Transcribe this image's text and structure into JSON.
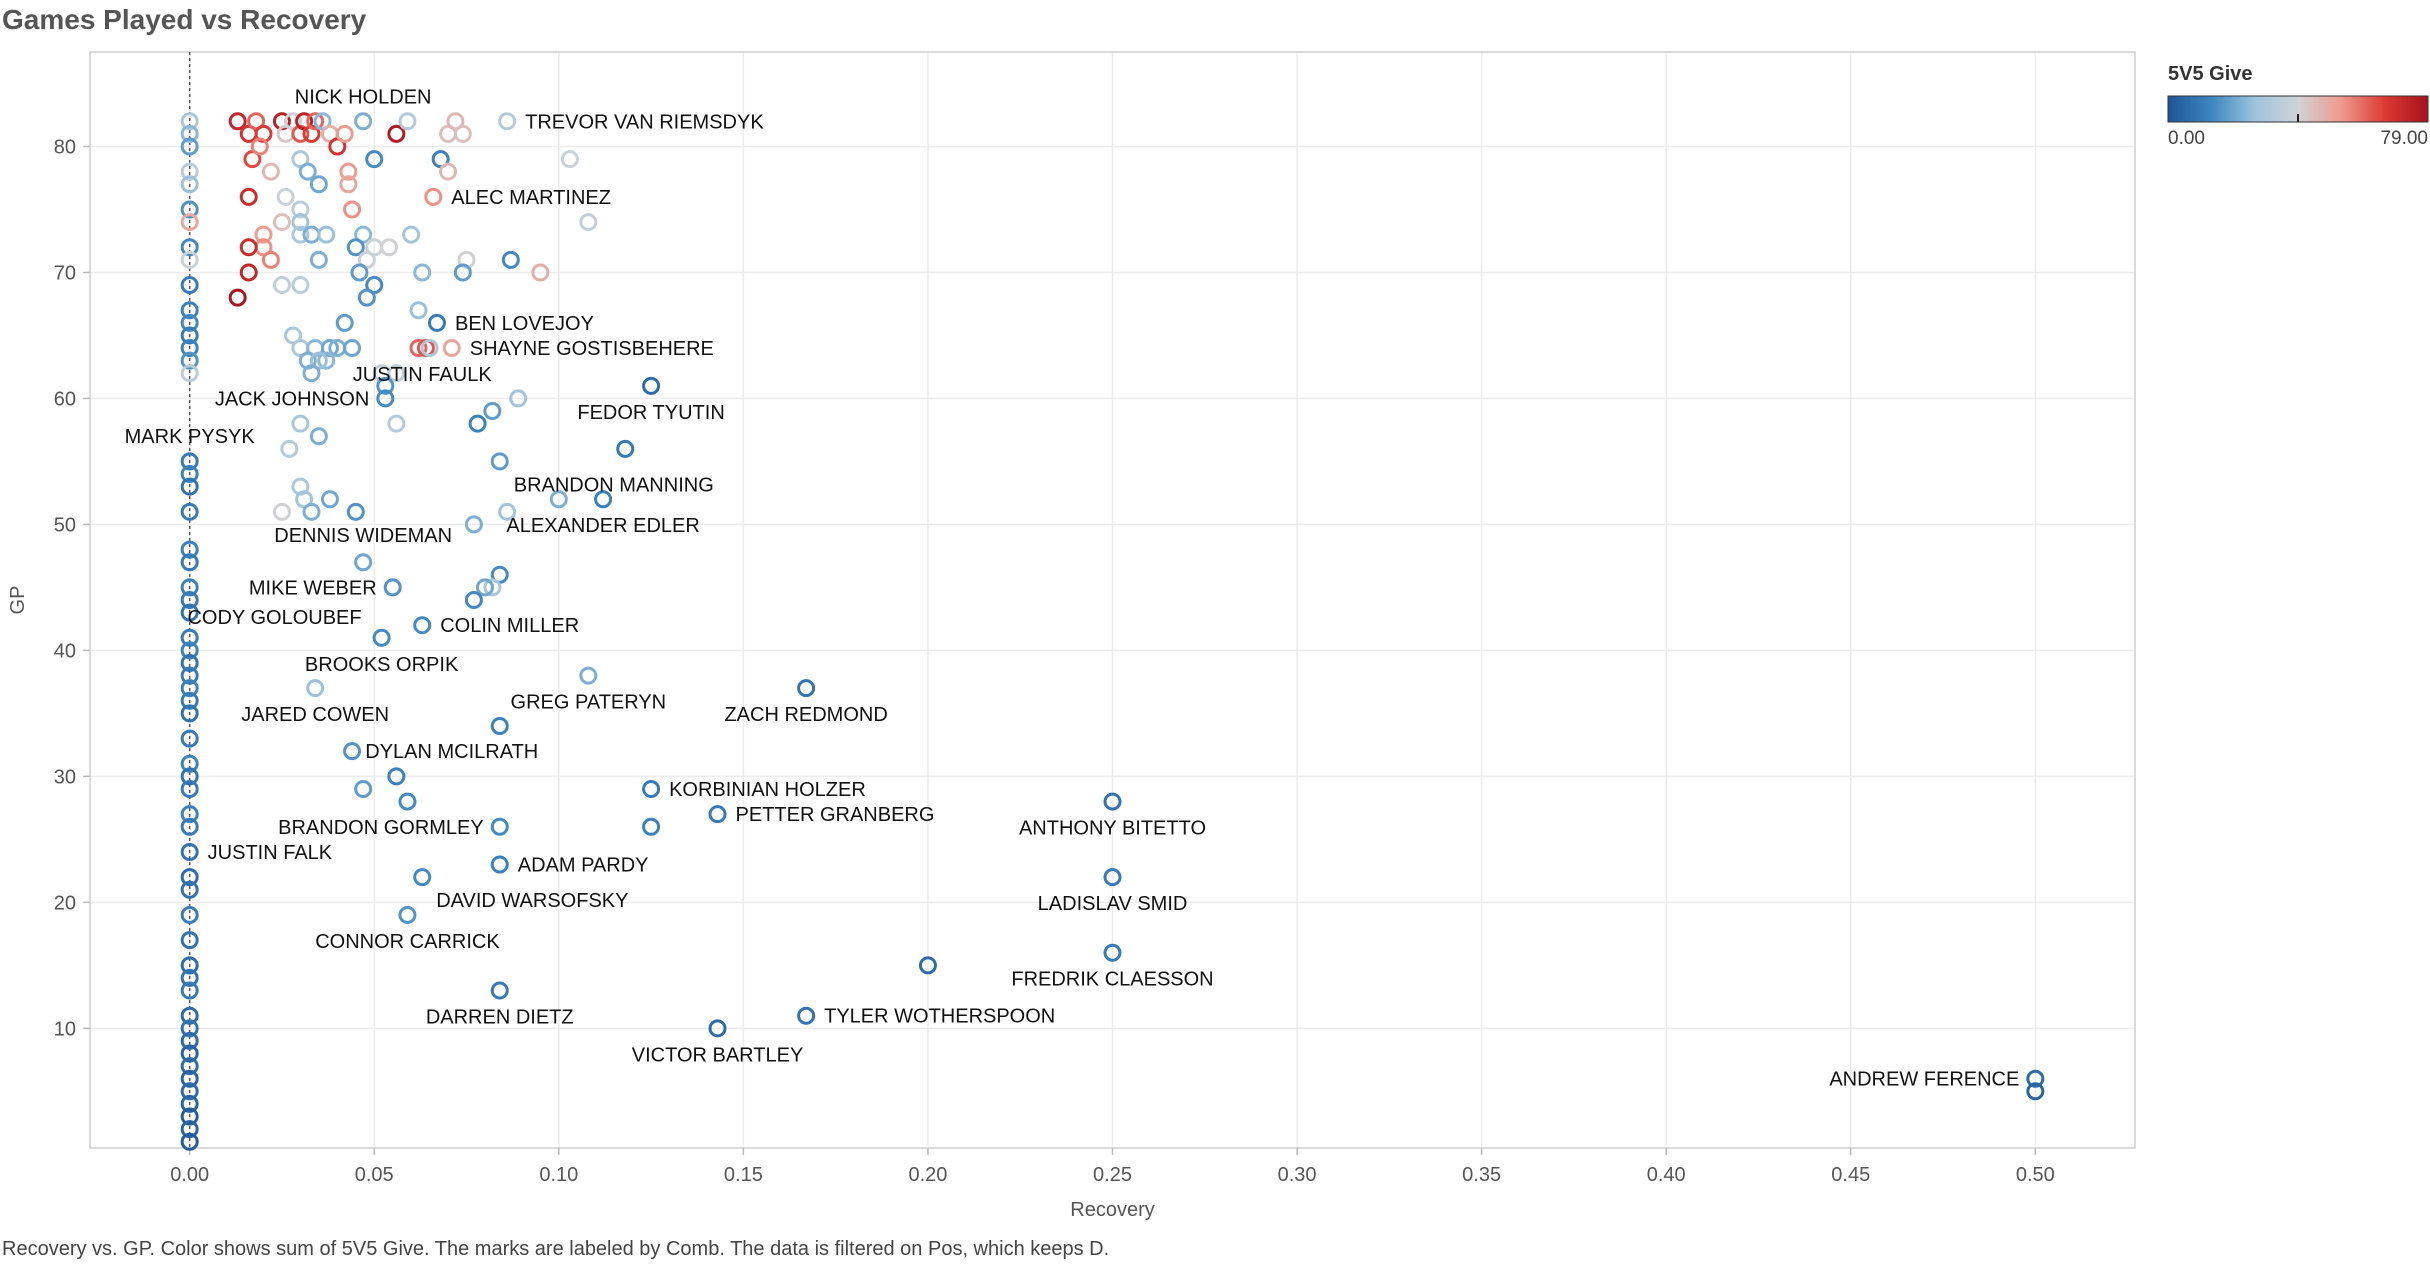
{
  "page": {
    "title": "Games Played vs Recovery",
    "caption": "Recovery vs. GP.  Color shows sum of 5V5 Give.  The marks are labeled by Comb. The data is filtered on Pos, which keeps D."
  },
  "chart_data": {
    "type": "scatter",
    "xlabel": "Recovery",
    "ylabel": "GP",
    "xlim": [
      -0.027,
      0.527
    ],
    "ylim": [
      0.5,
      87.5
    ],
    "xticks": [
      0.0,
      0.05,
      0.1,
      0.15,
      0.2,
      0.25,
      0.3,
      0.35,
      0.4,
      0.45,
      0.5
    ],
    "xtick_labels": [
      "0.00",
      "0.05",
      "0.10",
      "0.15",
      "0.20",
      "0.25",
      "0.30",
      "0.35",
      "0.40",
      "0.45",
      "0.50"
    ],
    "yticks": [
      10,
      20,
      30,
      40,
      50,
      60,
      70,
      80
    ],
    "ytick_labels": [
      "10",
      "20",
      "30",
      "40",
      "50",
      "60",
      "70",
      "80"
    ],
    "grid": true,
    "reference_line_x": 0.0,
    "legend": {
      "title": "5V5 Give",
      "min": 0,
      "max": 79,
      "min_label": "0.00",
      "max_label": "79.00",
      "placement": "top-right",
      "colors": [
        "#1f5597",
        "#3d86c0",
        "#9dc3dd",
        "#d0d3d6",
        "#ee9a8e",
        "#dc3a33",
        "#a5121e"
      ]
    },
    "points": [
      {
        "x": 0.0,
        "y": 82,
        "c": 30
      },
      {
        "x": 0.0,
        "y": 81,
        "c": 24
      },
      {
        "x": 0.0,
        "y": 80,
        "c": 18
      },
      {
        "x": 0.0,
        "y": 78,
        "c": 34
      },
      {
        "x": 0.0,
        "y": 77,
        "c": 26
      },
      {
        "x": 0.0,
        "y": 75,
        "c": 16
      },
      {
        "x": 0.0,
        "y": 74,
        "c": 50
      },
      {
        "x": 0.0,
        "y": 72,
        "c": 14
      },
      {
        "x": 0.0,
        "y": 71,
        "c": 38
      },
      {
        "x": 0.0,
        "y": 69,
        "c": 10
      },
      {
        "x": 0.0,
        "y": 67,
        "c": 12
      },
      {
        "x": 0.0,
        "y": 66,
        "c": 14
      },
      {
        "x": 0.0,
        "y": 65,
        "c": 10
      },
      {
        "x": 0.0,
        "y": 64,
        "c": 12
      },
      {
        "x": 0.0,
        "y": 63,
        "c": 16
      },
      {
        "x": 0.0,
        "y": 62,
        "c": 34
      },
      {
        "x": 0.0,
        "y": 55,
        "c": 10
      },
      {
        "x": 0.0,
        "y": 54,
        "c": 12
      },
      {
        "x": 0.0,
        "y": 53,
        "c": 8
      },
      {
        "x": 0.0,
        "y": 51,
        "c": 10
      },
      {
        "x": 0.0,
        "y": 48,
        "c": 12
      },
      {
        "x": 0.0,
        "y": 47,
        "c": 10
      },
      {
        "x": 0.0,
        "y": 45,
        "c": 12
      },
      {
        "x": 0.0,
        "y": 44,
        "c": 10
      },
      {
        "x": 0.0,
        "y": 43,
        "c": 8
      },
      {
        "x": 0.0,
        "y": 41,
        "c": 10
      },
      {
        "x": 0.0,
        "y": 40,
        "c": 12
      },
      {
        "x": 0.0,
        "y": 39,
        "c": 8
      },
      {
        "x": 0.0,
        "y": 38,
        "c": 10
      },
      {
        "x": 0.0,
        "y": 37,
        "c": 12
      },
      {
        "x": 0.0,
        "y": 36,
        "c": 10
      },
      {
        "x": 0.0,
        "y": 35,
        "c": 8
      },
      {
        "x": 0.0,
        "y": 33,
        "c": 10
      },
      {
        "x": 0.0,
        "y": 31,
        "c": 12
      },
      {
        "x": 0.0,
        "y": 30,
        "c": 8
      },
      {
        "x": 0.0,
        "y": 29,
        "c": 10
      },
      {
        "x": 0.0,
        "y": 27,
        "c": 12
      },
      {
        "x": 0.0,
        "y": 26,
        "c": 10
      },
      {
        "x": 0.0,
        "y": 24,
        "c": 8
      },
      {
        "x": 0.0,
        "y": 22,
        "c": 6
      },
      {
        "x": 0.0,
        "y": 21,
        "c": 8
      },
      {
        "x": 0.0,
        "y": 19,
        "c": 10
      },
      {
        "x": 0.0,
        "y": 17,
        "c": 8
      },
      {
        "x": 0.0,
        "y": 15,
        "c": 6
      },
      {
        "x": 0.0,
        "y": 14,
        "c": 8
      },
      {
        "x": 0.0,
        "y": 13,
        "c": 10
      },
      {
        "x": 0.0,
        "y": 11,
        "c": 6
      },
      {
        "x": 0.0,
        "y": 10,
        "c": 8
      },
      {
        "x": 0.0,
        "y": 9,
        "c": 6
      },
      {
        "x": 0.0,
        "y": 8,
        "c": 4
      },
      {
        "x": 0.0,
        "y": 7,
        "c": 6
      },
      {
        "x": 0.0,
        "y": 6,
        "c": 4
      },
      {
        "x": 0.0,
        "y": 5,
        "c": 6
      },
      {
        "x": 0.0,
        "y": 4,
        "c": 4
      },
      {
        "x": 0.0,
        "y": 3,
        "c": 2
      },
      {
        "x": 0.0,
        "y": 2,
        "c": 4
      },
      {
        "x": 0.0,
        "y": 1,
        "c": 2
      },
      {
        "x": 0.013,
        "y": 82,
        "c": 72
      },
      {
        "x": 0.016,
        "y": 81,
        "c": 68
      },
      {
        "x": 0.018,
        "y": 82,
        "c": 60
      },
      {
        "x": 0.02,
        "y": 81,
        "c": 66
      },
      {
        "x": 0.017,
        "y": 79,
        "c": 64
      },
      {
        "x": 0.019,
        "y": 80,
        "c": 56
      },
      {
        "x": 0.022,
        "y": 78,
        "c": 46
      },
      {
        "x": 0.025,
        "y": 82,
        "c": 74
      },
      {
        "x": 0.026,
        "y": 81,
        "c": 42
      },
      {
        "x": 0.028,
        "y": 82,
        "c": 38
      },
      {
        "x": 0.03,
        "y": 81,
        "c": 62
      },
      {
        "x": 0.031,
        "y": 82,
        "c": 74
      },
      {
        "x": 0.033,
        "y": 81,
        "c": 66
      },
      {
        "x": 0.034,
        "y": 82,
        "c": 60
      },
      {
        "x": 0.036,
        "y": 82,
        "c": 24
      },
      {
        "x": 0.038,
        "y": 81,
        "c": 48
      },
      {
        "x": 0.04,
        "y": 80,
        "c": 68
      },
      {
        "x": 0.042,
        "y": 81,
        "c": 52
      },
      {
        "x": 0.047,
        "y": 82,
        "c": 22
      },
      {
        "x": 0.05,
        "y": 79,
        "c": 14
      },
      {
        "x": 0.056,
        "y": 81,
        "c": 76
      },
      {
        "x": 0.059,
        "y": 82,
        "c": 32
      },
      {
        "x": 0.068,
        "y": 79,
        "c": 12
      },
      {
        "x": 0.07,
        "y": 81,
        "c": 44
      },
      {
        "x": 0.072,
        "y": 82,
        "c": 46
      },
      {
        "x": 0.074,
        "y": 81,
        "c": 44
      },
      {
        "x": 0.086,
        "y": 82,
        "c": 32
      },
      {
        "x": 0.07,
        "y": 78,
        "c": 46
      },
      {
        "x": 0.103,
        "y": 79,
        "c": 38
      },
      {
        "x": 0.016,
        "y": 76,
        "c": 70
      },
      {
        "x": 0.03,
        "y": 79,
        "c": 30
      },
      {
        "x": 0.032,
        "y": 78,
        "c": 22
      },
      {
        "x": 0.035,
        "y": 77,
        "c": 20
      },
      {
        "x": 0.043,
        "y": 78,
        "c": 52
      },
      {
        "x": 0.043,
        "y": 77,
        "c": 50
      },
      {
        "x": 0.026,
        "y": 76,
        "c": 38
      },
      {
        "x": 0.03,
        "y": 75,
        "c": 34
      },
      {
        "x": 0.044,
        "y": 75,
        "c": 54
      },
      {
        "x": 0.066,
        "y": 76,
        "c": 54
      },
      {
        "x": 0.108,
        "y": 74,
        "c": 36
      },
      {
        "x": 0.025,
        "y": 74,
        "c": 44
      },
      {
        "x": 0.03,
        "y": 74,
        "c": 28
      },
      {
        "x": 0.03,
        "y": 73,
        "c": 30
      },
      {
        "x": 0.033,
        "y": 73,
        "c": 22
      },
      {
        "x": 0.037,
        "y": 73,
        "c": 26
      },
      {
        "x": 0.02,
        "y": 73,
        "c": 52
      },
      {
        "x": 0.02,
        "y": 72,
        "c": 54
      },
      {
        "x": 0.016,
        "y": 72,
        "c": 70
      },
      {
        "x": 0.022,
        "y": 71,
        "c": 56
      },
      {
        "x": 0.047,
        "y": 73,
        "c": 24
      },
      {
        "x": 0.045,
        "y": 72,
        "c": 16
      },
      {
        "x": 0.05,
        "y": 72,
        "c": 38
      },
      {
        "x": 0.054,
        "y": 72,
        "c": 40
      },
      {
        "x": 0.06,
        "y": 73,
        "c": 28
      },
      {
        "x": 0.035,
        "y": 71,
        "c": 22
      },
      {
        "x": 0.048,
        "y": 71,
        "c": 38
      },
      {
        "x": 0.075,
        "y": 71,
        "c": 40
      },
      {
        "x": 0.087,
        "y": 71,
        "c": 14
      },
      {
        "x": 0.016,
        "y": 70,
        "c": 72
      },
      {
        "x": 0.046,
        "y": 70,
        "c": 18
      },
      {
        "x": 0.063,
        "y": 70,
        "c": 24
      },
      {
        "x": 0.074,
        "y": 70,
        "c": 18
      },
      {
        "x": 0.095,
        "y": 70,
        "c": 48
      },
      {
        "x": 0.025,
        "y": 69,
        "c": 36
      },
      {
        "x": 0.03,
        "y": 69,
        "c": 34
      },
      {
        "x": 0.05,
        "y": 69,
        "c": 14
      },
      {
        "x": 0.013,
        "y": 68,
        "c": 78
      },
      {
        "x": 0.048,
        "y": 68,
        "c": 16
      },
      {
        "x": 0.062,
        "y": 67,
        "c": 26
      },
      {
        "x": 0.067,
        "y": 66,
        "c": 10
      },
      {
        "x": 0.042,
        "y": 66,
        "c": 18
      },
      {
        "x": 0.028,
        "y": 65,
        "c": 30
      },
      {
        "x": 0.03,
        "y": 64,
        "c": 30
      },
      {
        "x": 0.034,
        "y": 64,
        "c": 24
      },
      {
        "x": 0.038,
        "y": 64,
        "c": 20
      },
      {
        "x": 0.04,
        "y": 64,
        "c": 22
      },
      {
        "x": 0.037,
        "y": 63,
        "c": 24
      },
      {
        "x": 0.044,
        "y": 64,
        "c": 20
      },
      {
        "x": 0.032,
        "y": 63,
        "c": 22
      },
      {
        "x": 0.035,
        "y": 63,
        "c": 26
      },
      {
        "x": 0.033,
        "y": 62,
        "c": 22
      },
      {
        "x": 0.052,
        "y": 62,
        "c": 36
      },
      {
        "x": 0.056,
        "y": 62,
        "c": 34
      },
      {
        "x": 0.062,
        "y": 64,
        "c": 60
      },
      {
        "x": 0.064,
        "y": 64,
        "c": 62
      },
      {
        "x": 0.065,
        "y": 64,
        "c": 30
      },
      {
        "x": 0.071,
        "y": 64,
        "c": 50
      },
      {
        "x": 0.053,
        "y": 61,
        "c": 16
      },
      {
        "x": 0.053,
        "y": 60,
        "c": 14
      },
      {
        "x": 0.089,
        "y": 60,
        "c": 28
      },
      {
        "x": 0.125,
        "y": 61,
        "c": 6
      },
      {
        "x": 0.082,
        "y": 59,
        "c": 18
      },
      {
        "x": 0.078,
        "y": 58,
        "c": 12
      },
      {
        "x": 0.03,
        "y": 58,
        "c": 30
      },
      {
        "x": 0.035,
        "y": 57,
        "c": 22
      },
      {
        "x": 0.056,
        "y": 58,
        "c": 32
      },
      {
        "x": 0.027,
        "y": 56,
        "c": 32
      },
      {
        "x": 0.118,
        "y": 56,
        "c": 10
      },
      {
        "x": 0.084,
        "y": 55,
        "c": 18
      },
      {
        "x": 0.03,
        "y": 53,
        "c": 30
      },
      {
        "x": 0.031,
        "y": 52,
        "c": 28
      },
      {
        "x": 0.038,
        "y": 52,
        "c": 20
      },
      {
        "x": 0.1,
        "y": 52,
        "c": 22
      },
      {
        "x": 0.112,
        "y": 52,
        "c": 12
      },
      {
        "x": 0.025,
        "y": 51,
        "c": 40
      },
      {
        "x": 0.033,
        "y": 51,
        "c": 22
      },
      {
        "x": 0.045,
        "y": 51,
        "c": 16
      },
      {
        "x": 0.086,
        "y": 51,
        "c": 28
      },
      {
        "x": 0.077,
        "y": 50,
        "c": 22
      },
      {
        "x": 0.047,
        "y": 47,
        "c": 20
      },
      {
        "x": 0.084,
        "y": 46,
        "c": 14
      },
      {
        "x": 0.082,
        "y": 45,
        "c": 30
      },
      {
        "x": 0.055,
        "y": 45,
        "c": 16
      },
      {
        "x": 0.08,
        "y": 45,
        "c": 20
      },
      {
        "x": 0.077,
        "y": 44,
        "c": 14
      },
      {
        "x": 0.063,
        "y": 42,
        "c": 14
      },
      {
        "x": 0.052,
        "y": 41,
        "c": 14
      },
      {
        "x": 0.108,
        "y": 38,
        "c": 22
      },
      {
        "x": 0.034,
        "y": 37,
        "c": 26
      },
      {
        "x": 0.167,
        "y": 37,
        "c": 8
      },
      {
        "x": 0.084,
        "y": 34,
        "c": 12
      },
      {
        "x": 0.044,
        "y": 32,
        "c": 16
      },
      {
        "x": 0.056,
        "y": 30,
        "c": 12
      },
      {
        "x": 0.047,
        "y": 29,
        "c": 18
      },
      {
        "x": 0.125,
        "y": 29,
        "c": 10
      },
      {
        "x": 0.059,
        "y": 28,
        "c": 14
      },
      {
        "x": 0.25,
        "y": 28,
        "c": 8
      },
      {
        "x": 0.143,
        "y": 27,
        "c": 10
      },
      {
        "x": 0.084,
        "y": 26,
        "c": 14
      },
      {
        "x": 0.125,
        "y": 26,
        "c": 12
      },
      {
        "x": 0.084,
        "y": 23,
        "c": 12
      },
      {
        "x": 0.063,
        "y": 22,
        "c": 14
      },
      {
        "x": 0.25,
        "y": 22,
        "c": 10
      },
      {
        "x": 0.059,
        "y": 19,
        "c": 16
      },
      {
        "x": 0.2,
        "y": 15,
        "c": 6
      },
      {
        "x": 0.25,
        "y": 16,
        "c": 10
      },
      {
        "x": 0.084,
        "y": 13,
        "c": 10
      },
      {
        "x": 0.167,
        "y": 11,
        "c": 8
      },
      {
        "x": 0.143,
        "y": 10,
        "c": 6
      },
      {
        "x": 0.5,
        "y": 6,
        "c": 6
      },
      {
        "x": 0.5,
        "y": 5,
        "c": 4
      }
    ],
    "labels": [
      {
        "text": "NICK HOLDEN",
        "x": 0.047,
        "y": 82,
        "pos": "above"
      },
      {
        "text": "TREVOR VAN RIEMSDYK",
        "x": 0.086,
        "y": 82,
        "pos": "right"
      },
      {
        "text": "ALEC MARTINEZ",
        "x": 0.066,
        "y": 76,
        "pos": "right"
      },
      {
        "text": "BEN LOVEJOY",
        "x": 0.067,
        "y": 66,
        "pos": "right"
      },
      {
        "text": "SHAYNE GOSTISBEHERE",
        "x": 0.071,
        "y": 64,
        "pos": "right"
      },
      {
        "text": "JUSTIN FAULK",
        "x": 0.063,
        "y": 64,
        "pos": "below"
      },
      {
        "text": "JACK JOHNSON",
        "x": 0.053,
        "y": 60,
        "pos": "left"
      },
      {
        "text": "FEDOR TYUTIN",
        "x": 0.125,
        "y": 61,
        "pos": "below"
      },
      {
        "text": "MARK PYSYK",
        "x": 0.0,
        "y": 57,
        "pos": "center"
      },
      {
        "text": "BRANDON MANNING",
        "x": 0.084,
        "y": 55,
        "pos": "right-below"
      },
      {
        "text": "ALEXANDER EDLER",
        "x": 0.112,
        "y": 52,
        "pos": "below"
      },
      {
        "text": "DENNIS WIDEMAN",
        "x": 0.047,
        "y": 47,
        "pos": "above-center"
      },
      {
        "text": "MIKE WEBER",
        "x": 0.055,
        "y": 45,
        "pos": "left"
      },
      {
        "text": "CODY GOLOUBEF",
        "x": 0.052,
        "y": 41,
        "pos": "above-left"
      },
      {
        "text": "COLIN MILLER",
        "x": 0.063,
        "y": 42,
        "pos": "right"
      },
      {
        "text": "BROOKS ORPIK",
        "x": 0.052,
        "y": 41,
        "pos": "below"
      },
      {
        "text": "GREG PATERYN",
        "x": 0.108,
        "y": 38,
        "pos": "below"
      },
      {
        "text": "JARED COWEN",
        "x": 0.034,
        "y": 37,
        "pos": "below"
      },
      {
        "text": "ZACH REDMOND",
        "x": 0.167,
        "y": 37,
        "pos": "below"
      },
      {
        "text": "DYLAN MCILRATH",
        "x": 0.071,
        "y": 32,
        "pos": "center"
      },
      {
        "text": "KORBINIAN HOLZER",
        "x": 0.125,
        "y": 29,
        "pos": "right"
      },
      {
        "text": "PETTER GRANBERG",
        "x": 0.143,
        "y": 27,
        "pos": "right"
      },
      {
        "text": "ANTHONY BITETTO",
        "x": 0.25,
        "y": 28,
        "pos": "below"
      },
      {
        "text": "BRANDON GORMLEY",
        "x": 0.084,
        "y": 26,
        "pos": "left"
      },
      {
        "text": "JUSTIN FALK",
        "x": 0.0,
        "y": 24,
        "pos": "right"
      },
      {
        "text": "ADAM PARDY",
        "x": 0.084,
        "y": 23,
        "pos": "right"
      },
      {
        "text": "DAVID WARSOFSKY",
        "x": 0.063,
        "y": 22,
        "pos": "right-below"
      },
      {
        "text": "LADISLAV SMID",
        "x": 0.25,
        "y": 22,
        "pos": "below"
      },
      {
        "text": "CONNOR CARRICK",
        "x": 0.059,
        "y": 19,
        "pos": "below"
      },
      {
        "text": "FREDRIK CLAESSON",
        "x": 0.25,
        "y": 16,
        "pos": "below"
      },
      {
        "text": "DARREN DIETZ",
        "x": 0.084,
        "y": 13,
        "pos": "below"
      },
      {
        "text": "TYLER WOTHERSPOON",
        "x": 0.167,
        "y": 11,
        "pos": "right"
      },
      {
        "text": "VICTOR BARTLEY",
        "x": 0.143,
        "y": 10,
        "pos": "below"
      },
      {
        "text": "ANDREW FERENCE",
        "x": 0.5,
        "y": 6,
        "pos": "left"
      }
    ]
  }
}
